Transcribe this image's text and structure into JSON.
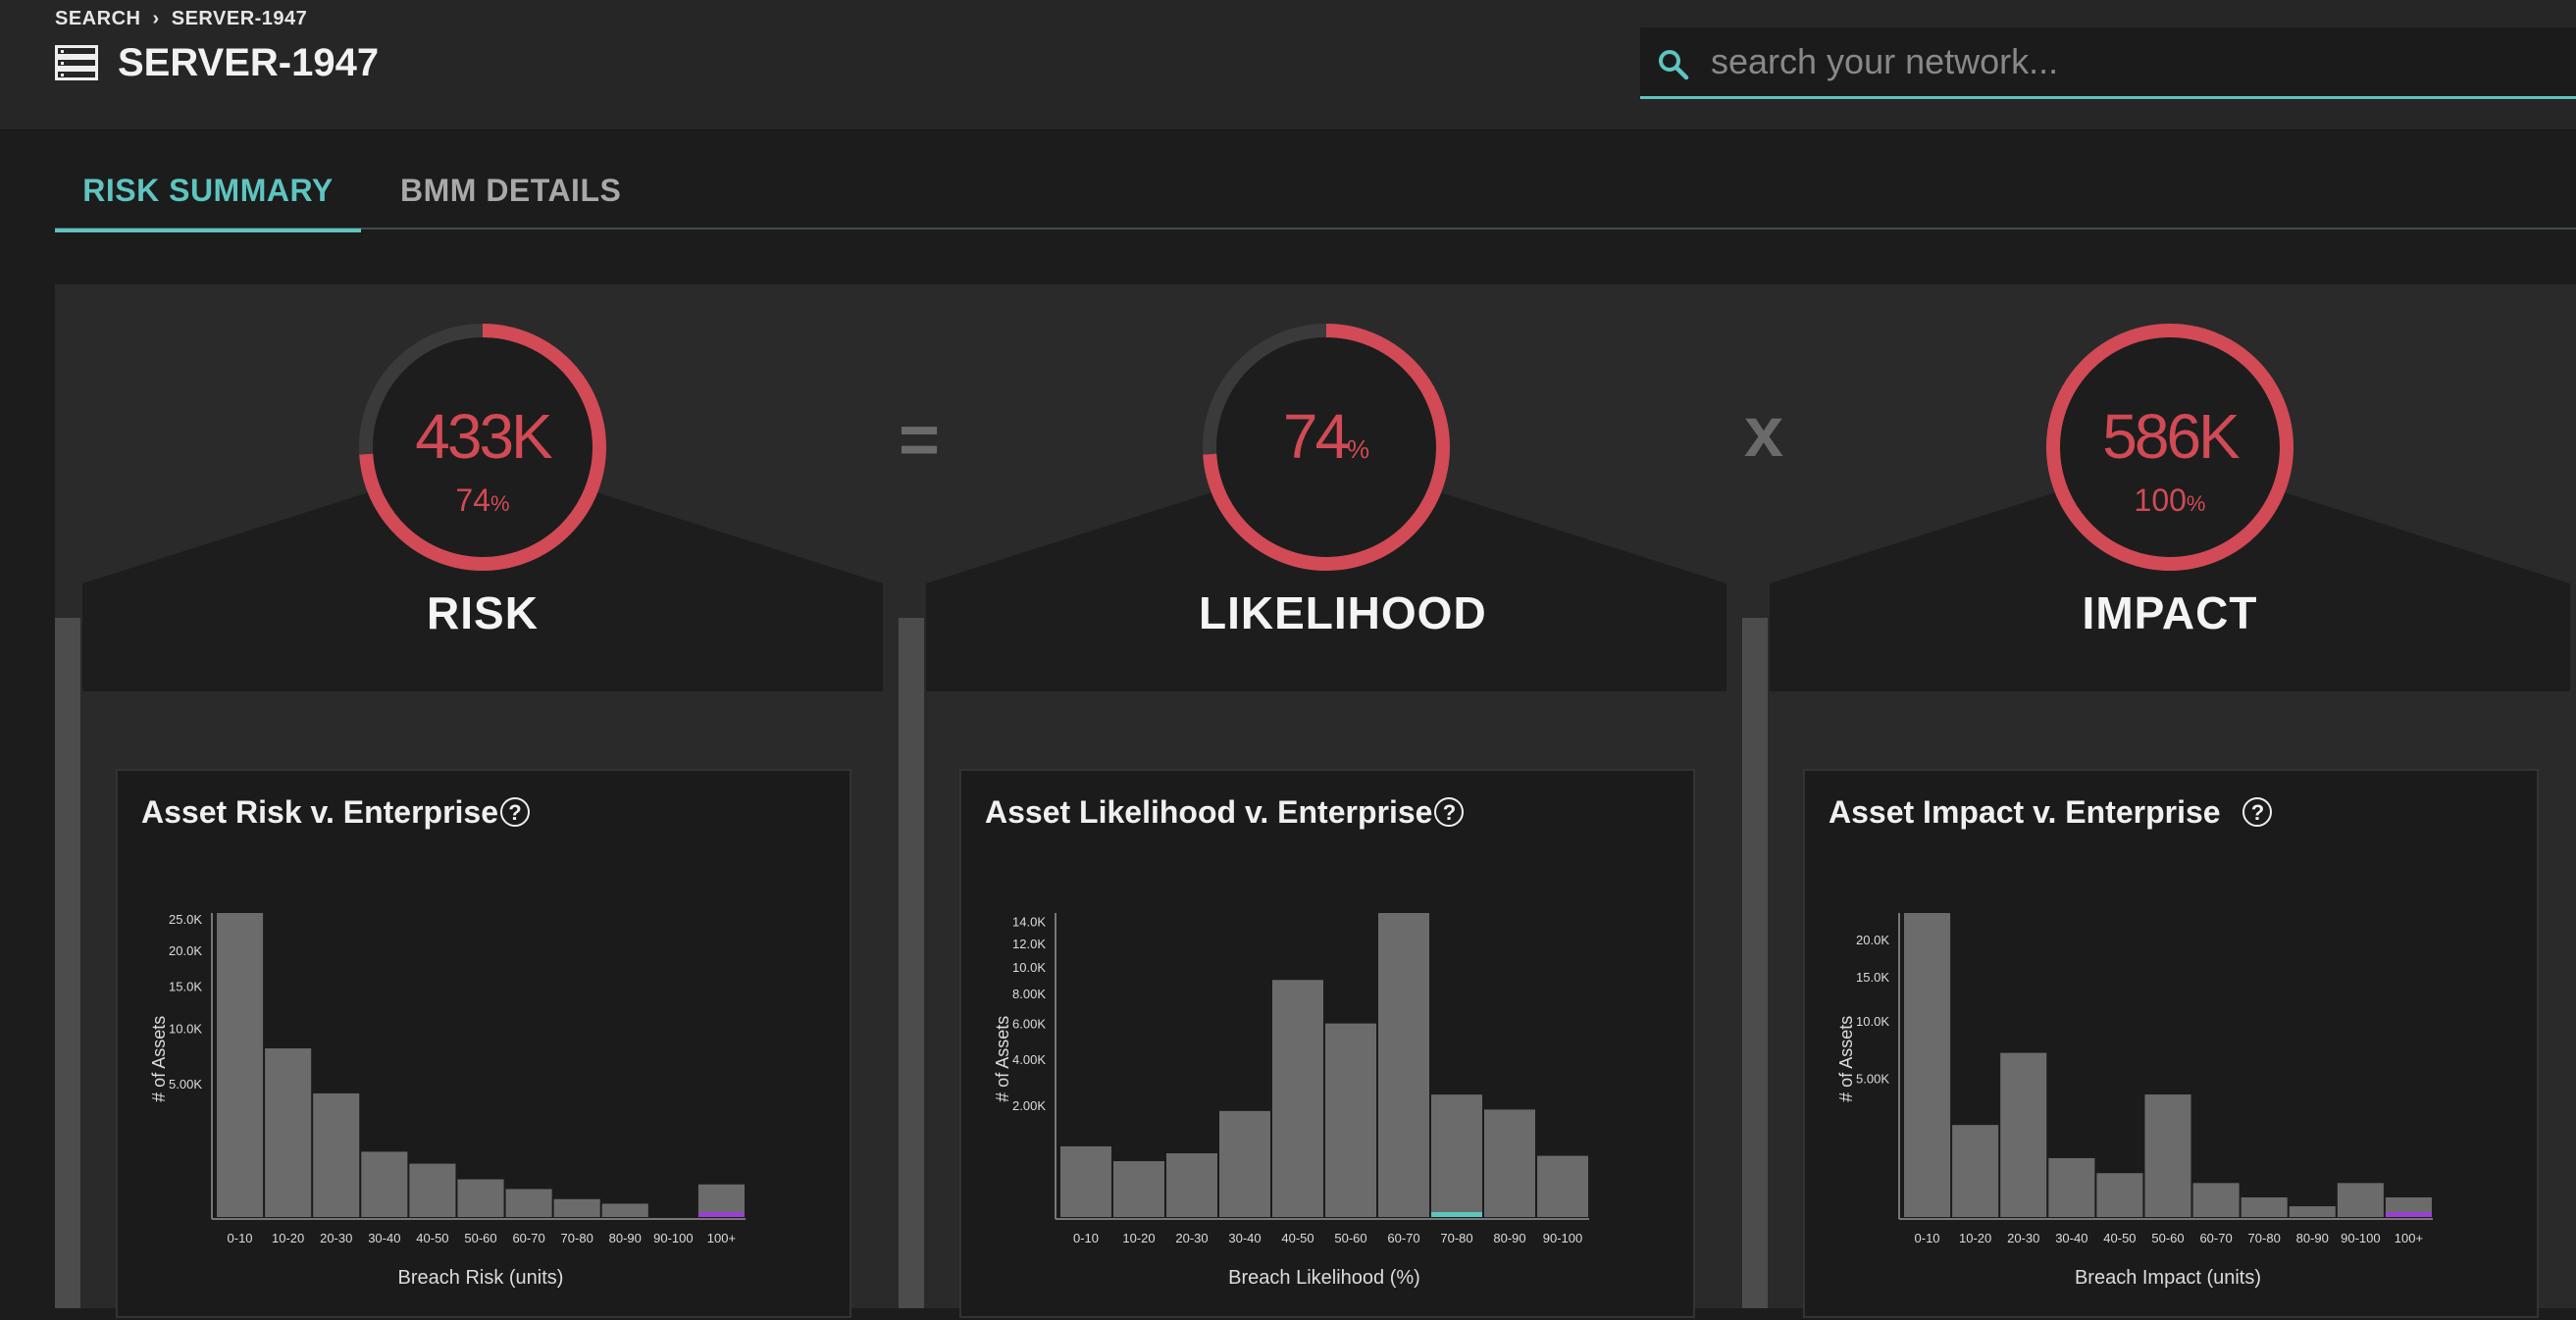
{
  "header": {
    "breadcrumb": [
      "SEARCH",
      "›",
      "SERVER-1947"
    ],
    "title": "SERVER-1947"
  },
  "search": {
    "placeholder": "search your network..."
  },
  "tabs": [
    {
      "label": "RISK SUMMARY",
      "active": true
    },
    {
      "label": "BMM DETAILS",
      "active": false
    }
  ],
  "operators": {
    "equals": "=",
    "times": "x"
  },
  "colors": {
    "accent": "#5ec4c0",
    "ring": "#d14a55",
    "ring_track": "#3a3a3a",
    "bar": "#6b6b6b",
    "highlight_teal": "#5ec4c0",
    "highlight_purple": "#9b3fd0"
  },
  "metrics": [
    {
      "key": "risk",
      "value": "433K",
      "percent_number": "74",
      "percent_sign": "%",
      "fraction": 0.74,
      "label": "RISK"
    },
    {
      "key": "likelihood",
      "value": "74",
      "value_suffix": "%",
      "fraction": 0.74,
      "label": "LIKELIHOOD"
    },
    {
      "key": "impact",
      "value": "586K",
      "percent_number": "100",
      "percent_sign": "%",
      "fraction": 1.0,
      "label": "IMPACT"
    }
  ],
  "cards": [
    {
      "title": "Asset Risk v. Enterprise"
    },
    {
      "title": "Asset Likelihood v. Enterprise"
    },
    {
      "title": "Asset Impact v. Enterprise"
    }
  ],
  "chart_data": [
    {
      "type": "bar",
      "title": "Asset Risk v. Enterprise",
      "xlabel": "Breach Risk (units)",
      "ylabel": "# of Assets",
      "categories": [
        "0-10",
        "10-20",
        "20-30",
        "30-40",
        "40-50",
        "50-60",
        "60-70",
        "70-80",
        "80-90",
        "90-100",
        "100+"
      ],
      "values": [
        26000,
        8000,
        4300,
        1200,
        800,
        400,
        220,
        90,
        50,
        0,
        300
      ],
      "highlight": {
        "category": "100+",
        "color": "#9b3fd0"
      },
      "yticks": [
        {
          "value": 5000,
          "label": "5.00K"
        },
        {
          "value": 10000,
          "label": "10.0K"
        },
        {
          "value": 15000,
          "label": "15.0K"
        },
        {
          "value": 20000,
          "label": "20.0K"
        },
        {
          "value": 25000,
          "label": "25.0K"
        }
      ],
      "scale": "sqrt",
      "ylim": [
        0,
        26000
      ]
    },
    {
      "type": "bar",
      "title": "Asset Likelihood v. Enterprise",
      "xlabel": "Breach Likelihood (%)",
      "ylabel": "# of Assets",
      "categories": [
        "0-10",
        "10-20",
        "20-30",
        "30-40",
        "40-50",
        "50-60",
        "60-70",
        "70-80",
        "80-90",
        "90-100"
      ],
      "values": [
        800,
        500,
        650,
        1800,
        9000,
        6000,
        14800,
        2400,
        1850,
        600
      ],
      "highlight": {
        "category": "70-80",
        "color": "#5ec4c0"
      },
      "yticks": [
        {
          "value": 2000,
          "label": "2.00K"
        },
        {
          "value": 4000,
          "label": "4.00K"
        },
        {
          "value": 6000,
          "label": "6.00K"
        },
        {
          "value": 8000,
          "label": "8.00K"
        },
        {
          "value": 10000,
          "label": "10.0K"
        },
        {
          "value": 12000,
          "label": "12.0K"
        },
        {
          "value": 14000,
          "label": "14.0K"
        }
      ],
      "scale": "sqrt",
      "ylim": [
        0,
        14800
      ]
    },
    {
      "type": "bar",
      "title": "Asset Impact v. Enterprise",
      "xlabel": "Breach Impact (units)",
      "ylabel": "# of Assets",
      "categories": [
        "0-10",
        "10-20",
        "20-30",
        "30-40",
        "40-50",
        "50-60",
        "60-70",
        "70-80",
        "80-90",
        "90-100",
        "100+"
      ],
      "values": [
        24000,
        2200,
        7000,
        900,
        500,
        3900,
        300,
        100,
        30,
        300,
        100
      ],
      "highlight": {
        "category": "100+",
        "color": "#9b3fd0"
      },
      "yticks": [
        {
          "value": 5000,
          "label": "5.00K"
        },
        {
          "value": 10000,
          "label": "10.0K"
        },
        {
          "value": 15000,
          "label": "15.0K"
        },
        {
          "value": 20000,
          "label": "20.0K"
        }
      ],
      "scale": "sqrt",
      "ylim": [
        0,
        24000
      ]
    }
  ]
}
